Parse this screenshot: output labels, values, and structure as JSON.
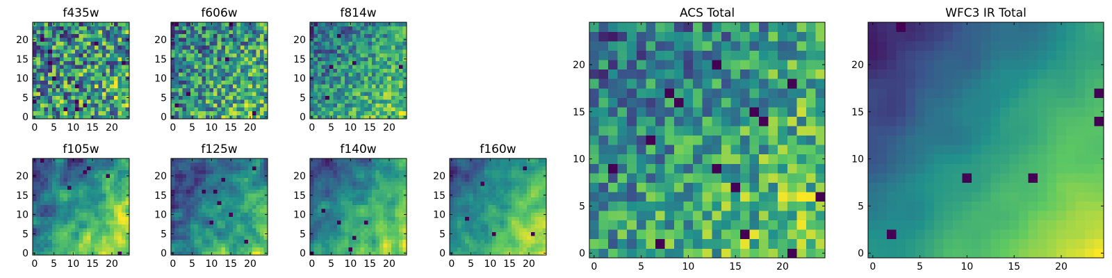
{
  "figure": {
    "background": "#ffffff",
    "colormap": [
      "#440154",
      "#3b528b",
      "#21918c",
      "#5ec962",
      "#fde725"
    ],
    "axis_color": "#000000"
  },
  "chart_data": [
    {
      "type": "heatmap",
      "id": "f435w",
      "title": "f435w",
      "grid": [
        25,
        25
      ],
      "xlim": [
        -0.5,
        24.5
      ],
      "ylim": [
        -0.5,
        24.5
      ],
      "xticks": [
        0,
        5,
        10,
        15,
        20
      ],
      "yticks": [
        0,
        5,
        10,
        15,
        20
      ],
      "xtick_labels": [
        "0",
        "5",
        "10",
        "15",
        "20"
      ],
      "ytick_labels": [
        "0",
        "5",
        "10",
        "15",
        "20"
      ],
      "seed": 11,
      "gradient": 0.15,
      "noise": 0.85,
      "dark_points": 12,
      "smooth": 0
    },
    {
      "type": "heatmap",
      "id": "f606w",
      "title": "f606w",
      "grid": [
        25,
        25
      ],
      "xlim": [
        -0.5,
        24.5
      ],
      "ylim": [
        -0.5,
        24.5
      ],
      "xticks": [
        0,
        5,
        10,
        15,
        20
      ],
      "yticks": [
        0,
        5,
        10,
        15,
        20
      ],
      "xtick_labels": [
        "0",
        "5",
        "10",
        "15",
        "20"
      ],
      "ytick_labels": [
        "0",
        "5",
        "10",
        "15",
        "20"
      ],
      "seed": 23,
      "gradient": 0.3,
      "noise": 0.7,
      "dark_points": 6,
      "smooth": 0
    },
    {
      "type": "heatmap",
      "id": "f814w",
      "title": "f814w",
      "grid": [
        25,
        25
      ],
      "xlim": [
        -0.5,
        24.5
      ],
      "ylim": [
        -0.5,
        24.5
      ],
      "xticks": [
        0,
        5,
        10,
        15,
        20
      ],
      "yticks": [
        0,
        5,
        10,
        15,
        20
      ],
      "xtick_labels": [
        "0",
        "5",
        "10",
        "15",
        "20"
      ],
      "ytick_labels": [
        "0",
        "5",
        "10",
        "15",
        "20"
      ],
      "seed": 37,
      "gradient": 0.5,
      "noise": 0.55,
      "dark_points": 5,
      "smooth": 0
    },
    {
      "type": "heatmap",
      "id": "f105w",
      "title": "f105w",
      "grid": [
        25,
        25
      ],
      "xlim": [
        -0.5,
        24.5
      ],
      "ylim": [
        -0.5,
        24.5
      ],
      "xticks": [
        0,
        5,
        10,
        15,
        20
      ],
      "yticks": [
        0,
        5,
        10,
        15,
        20
      ],
      "xtick_labels": [
        "0",
        "5",
        "10",
        "15",
        "20"
      ],
      "ytick_labels": [
        "0",
        "5",
        "10",
        "15",
        "20"
      ],
      "seed": 41,
      "gradient": 0.5,
      "noise": 0.5,
      "dark_points": 6,
      "smooth": 1
    },
    {
      "type": "heatmap",
      "id": "f125w",
      "title": "f125w",
      "grid": [
        25,
        25
      ],
      "xlim": [
        -0.5,
        24.5
      ],
      "ylim": [
        -0.5,
        24.5
      ],
      "xticks": [
        0,
        5,
        10,
        15,
        20
      ],
      "yticks": [
        0,
        5,
        10,
        15,
        20
      ],
      "xtick_labels": [
        "0",
        "5",
        "10",
        "15",
        "20"
      ],
      "ytick_labels": [
        "0",
        "5",
        "10",
        "15",
        "20"
      ],
      "seed": 53,
      "gradient": 0.45,
      "noise": 0.55,
      "dark_points": 8,
      "smooth": 1
    },
    {
      "type": "heatmap",
      "id": "f140w",
      "title": "f140w",
      "grid": [
        25,
        25
      ],
      "xlim": [
        -0.5,
        24.5
      ],
      "ylim": [
        -0.5,
        24.5
      ],
      "xticks": [
        0,
        5,
        10,
        15,
        20
      ],
      "yticks": [
        0,
        5,
        10,
        15,
        20
      ],
      "xtick_labels": [
        "0",
        "5",
        "10",
        "15",
        "20"
      ],
      "ytick_labels": [
        "0",
        "5",
        "10",
        "15",
        "20"
      ],
      "seed": 67,
      "gradient": 0.55,
      "noise": 0.5,
      "dark_points": 6,
      "smooth": 1
    },
    {
      "type": "heatmap",
      "id": "f160w",
      "title": "f160w",
      "grid": [
        25,
        25
      ],
      "xlim": [
        -0.5,
        24.5
      ],
      "ylim": [
        -0.5,
        24.5
      ],
      "xticks": [
        0,
        5,
        10,
        15,
        20
      ],
      "yticks": [
        0,
        5,
        10,
        15,
        20
      ],
      "xtick_labels": [
        "0",
        "5",
        "10",
        "15",
        "20"
      ],
      "ytick_labels": [
        "0",
        "5",
        "10",
        "15",
        "20"
      ],
      "seed": 79,
      "gradient": 0.6,
      "noise": 0.45,
      "dark_points": 5,
      "smooth": 1
    },
    {
      "type": "heatmap",
      "id": "acs_total",
      "title": "ACS Total",
      "grid": [
        25,
        25
      ],
      "xlim": [
        -0.5,
        24.5
      ],
      "ylim": [
        -0.5,
        24.5
      ],
      "xticks": [
        0,
        5,
        10,
        15,
        20
      ],
      "yticks": [
        0,
        5,
        10,
        15,
        20
      ],
      "xtick_labels": [
        "0",
        "5",
        "10",
        "15",
        "20"
      ],
      "ytick_labels": [
        "0",
        "5",
        "10",
        "15",
        "20"
      ],
      "seed": 97,
      "gradient": 0.45,
      "noise": 0.55,
      "dark_points": 14,
      "smooth": 0
    },
    {
      "type": "heatmap",
      "id": "wfc3_ir_total",
      "title": "WFC3 IR Total",
      "grid": [
        25,
        25
      ],
      "xlim": [
        -0.5,
        24.5
      ],
      "ylim": [
        -0.5,
        24.5
      ],
      "xticks": [
        0,
        5,
        10,
        15,
        20
      ],
      "yticks": [
        0,
        5,
        10,
        15,
        20
      ],
      "xtick_labels": [
        "0",
        "5",
        "10",
        "15",
        "20"
      ],
      "ytick_labels": [
        "0",
        "5",
        "10",
        "15",
        "20"
      ],
      "seed": 113,
      "gradient": 0.75,
      "noise": 0.25,
      "dark_points": 6,
      "smooth": 2
    }
  ]
}
